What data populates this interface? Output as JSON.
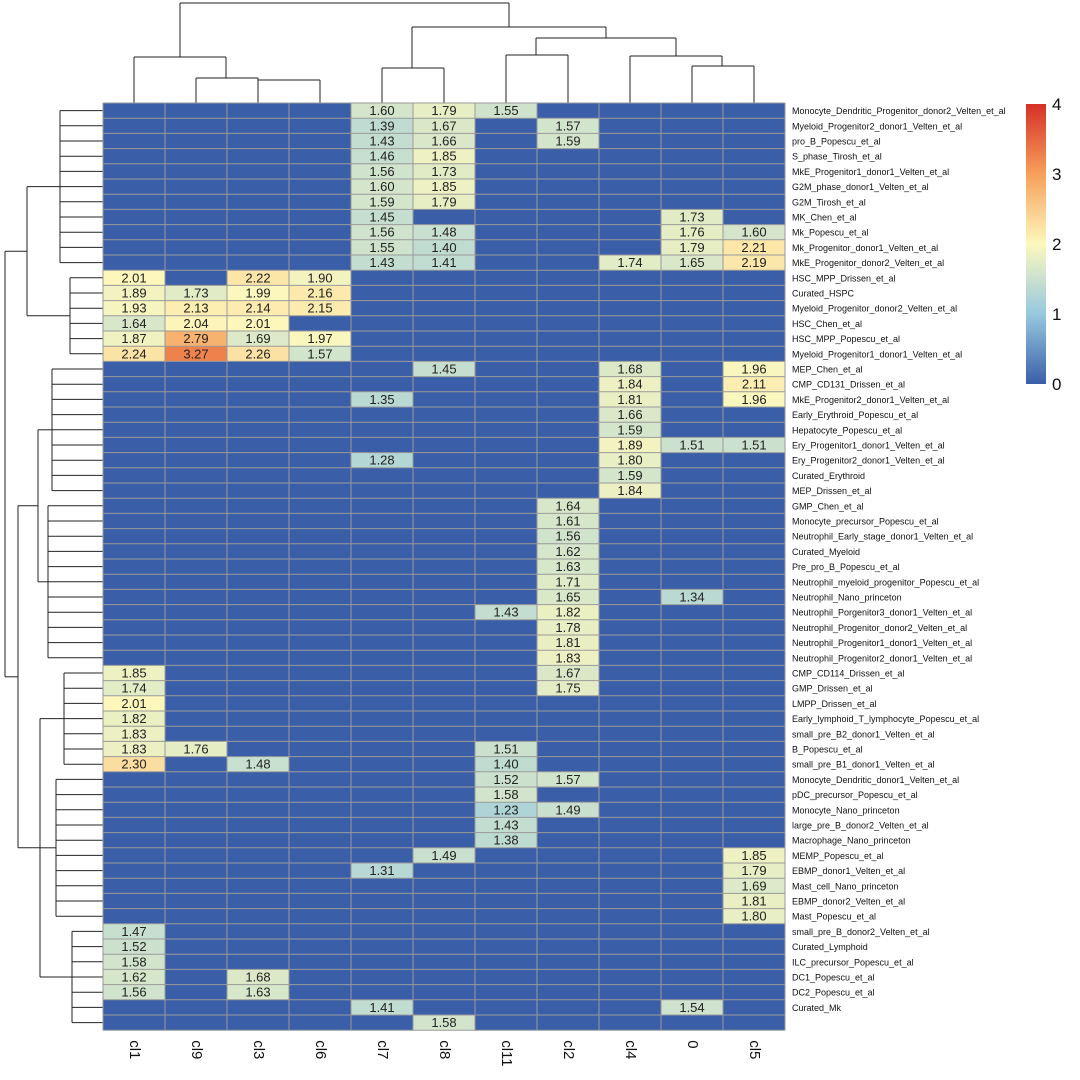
{
  "chart_data": {
    "type": "heatmap",
    "title": "",
    "columns": [
      "cl1",
      "cl9",
      "cl3",
      "cl6",
      "cl7",
      "cl8",
      "cl11",
      "cl2",
      "cl4",
      "0",
      "cl5"
    ],
    "rows": [
      "Monocyte_Dendritic_Progenitor_donor2_Velten_et_al",
      "Myeloid_Progenitor2_donor1_Velten_et_al",
      "pro_B_Popescu_et_al",
      "S_phase_Tirosh_et_al",
      "MkE_Progenitor1_donor1_Velten_et_al",
      "G2M_phase_donor1_Velten_et_al",
      "G2M_Tirosh_et_al",
      "MK_Chen_et_al",
      "Mk_Popescu_et_al",
      "Mk_Progenitor_donor1_Velten_et_al",
      "MkE_Progenitor_donor2_Velten_et_al",
      "HSC_MPP_Drissen_et_al",
      "Curated_HSPC",
      "Myeloid_Progenitor_donor2_Velten_et_al",
      "HSC_Chen_et_al",
      "HSC_MPP_Popescu_et_al",
      "Myeloid_Progenitor1_donor1_Velten_et_al",
      "MEP_Chen_et_al",
      "CMP_CD131_Drissen_et_al",
      "MkE_Progenitor2_donor1_Velten_et_al",
      "Early_Erythroid_Popescu_et_al",
      "Hepatocyte_Popescu_et_al",
      "Ery_Progenitor1_donor1_Velten_et_al",
      "Ery_Progenitor2_donor1_Velten_et_al",
      "Curated_Erythroid",
      "MEP_Drissen_et_al",
      "GMP_Chen_et_al",
      "Monocyte_precursor_Popescu_et_al",
      "Neutrophil_Early_stage_donor1_Velten_et_al",
      "Curated_Myeloid",
      "Pre_pro_B_Popescu_et_al",
      "Neutrophil_myeloid_progenitor_Popescu_et_al",
      "Neutrophil_Nano_princeton",
      "Neutrophil_Porgenitor3_donor1_Velten_et_al",
      "Neutrophil_Progenitor_donor2_Velten_et_al",
      "Neutrophil_Progenitor1_donor1_Velten_et_al",
      "Neutrophil_Progenitor2_donor1_Velten_et_al",
      "CMP_CD114_Drissen_et_al",
      "GMP_Drissen_et_al",
      "LMPP_Drissen_et_al",
      "Early_lymphoid_T_lymphocyte_Popescu_et_al",
      "small_pre_B2_donor1_Velten_et_al",
      "B_Popescu_et_al",
      "small_pre_B1_donor1_Velten_et_al",
      "Monocyte_Dendritic_donor1_Velten_et_al",
      "pDC_precursor_Popescu_et_al",
      "Monocyte_Nano_princeton",
      "large_pre_B_donor2_Velten_et_al",
      "Macrophage_Nano_princeton",
      "MEMP_Popescu_et_al",
      "EBMP_donor1_Velten_et_al",
      "Mast_cell_Nano_princeton",
      "EBMP_donor2_Velten_et_al",
      "Mast_Popescu_et_al",
      "small_pre_B_donor2_Velten_et_al",
      "Curated_Lymphoid",
      "ILC_precursor_Popescu_et_al",
      "DC1_Popescu_et_al",
      "DC2_Popescu_et_al",
      "Curated_Mk",
      ""
    ],
    "cells": [
      {
        "row": 0,
        "col": 4,
        "value": "1.60"
      },
      {
        "row": 0,
        "col": 5,
        "value": "1.79"
      },
      {
        "row": 0,
        "col": 6,
        "value": "1.55"
      },
      {
        "row": 1,
        "col": 4,
        "value": "1.39"
      },
      {
        "row": 1,
        "col": 5,
        "value": "1.67"
      },
      {
        "row": 1,
        "col": 7,
        "value": "1.57"
      },
      {
        "row": 2,
        "col": 4,
        "value": "1.43"
      },
      {
        "row": 2,
        "col": 5,
        "value": "1.66"
      },
      {
        "row": 2,
        "col": 7,
        "value": "1.59"
      },
      {
        "row": 3,
        "col": 4,
        "value": "1.46"
      },
      {
        "row": 3,
        "col": 5,
        "value": "1.85"
      },
      {
        "row": 4,
        "col": 4,
        "value": "1.56"
      },
      {
        "row": 4,
        "col": 5,
        "value": "1.73"
      },
      {
        "row": 5,
        "col": 4,
        "value": "1.60"
      },
      {
        "row": 5,
        "col": 5,
        "value": "1.85"
      },
      {
        "row": 6,
        "col": 4,
        "value": "1.59"
      },
      {
        "row": 6,
        "col": 5,
        "value": "1.79"
      },
      {
        "row": 7,
        "col": 4,
        "value": "1.45"
      },
      {
        "row": 7,
        "col": 9,
        "value": "1.73"
      },
      {
        "row": 8,
        "col": 4,
        "value": "1.56"
      },
      {
        "row": 8,
        "col": 5,
        "value": "1.48"
      },
      {
        "row": 8,
        "col": 9,
        "value": "1.76"
      },
      {
        "row": 8,
        "col": 10,
        "value": "1.60"
      },
      {
        "row": 9,
        "col": 4,
        "value": "1.55"
      },
      {
        "row": 9,
        "col": 5,
        "value": "1.40"
      },
      {
        "row": 9,
        "col": 9,
        "value": "1.79"
      },
      {
        "row": 9,
        "col": 10,
        "value": "2.21"
      },
      {
        "row": 10,
        "col": 4,
        "value": "1.43"
      },
      {
        "row": 10,
        "col": 5,
        "value": "1.41"
      },
      {
        "row": 10,
        "col": 8,
        "value": "1.74"
      },
      {
        "row": 10,
        "col": 9,
        "value": "1.65"
      },
      {
        "row": 10,
        "col": 10,
        "value": "2.19"
      },
      {
        "row": 11,
        "col": 0,
        "value": "2.01"
      },
      {
        "row": 11,
        "col": 2,
        "value": "2.22"
      },
      {
        "row": 11,
        "col": 3,
        "value": "1.90"
      },
      {
        "row": 12,
        "col": 0,
        "value": "1.89"
      },
      {
        "row": 12,
        "col": 1,
        "value": "1.73"
      },
      {
        "row": 12,
        "col": 2,
        "value": "1.99"
      },
      {
        "row": 12,
        "col": 3,
        "value": "2.16"
      },
      {
        "row": 13,
        "col": 0,
        "value": "1.93"
      },
      {
        "row": 13,
        "col": 1,
        "value": "2.13"
      },
      {
        "row": 13,
        "col": 2,
        "value": "2.14"
      },
      {
        "row": 13,
        "col": 3,
        "value": "2.15"
      },
      {
        "row": 14,
        "col": 0,
        "value": "1.64"
      },
      {
        "row": 14,
        "col": 1,
        "value": "2.04"
      },
      {
        "row": 14,
        "col": 2,
        "value": "2.01"
      },
      {
        "row": 15,
        "col": 0,
        "value": "1.87"
      },
      {
        "row": 15,
        "col": 1,
        "value": "2.79"
      },
      {
        "row": 15,
        "col": 2,
        "value": "1.69"
      },
      {
        "row": 15,
        "col": 3,
        "value": "1.97"
      },
      {
        "row": 16,
        "col": 0,
        "value": "2.24"
      },
      {
        "row": 16,
        "col": 1,
        "value": "3.27"
      },
      {
        "row": 16,
        "col": 2,
        "value": "2.26"
      },
      {
        "row": 16,
        "col": 3,
        "value": "1.57"
      },
      {
        "row": 17,
        "col": 5,
        "value": "1.45"
      },
      {
        "row": 17,
        "col": 8,
        "value": "1.68"
      },
      {
        "row": 17,
        "col": 10,
        "value": "1.96"
      },
      {
        "row": 18,
        "col": 8,
        "value": "1.84"
      },
      {
        "row": 18,
        "col": 10,
        "value": "2.11"
      },
      {
        "row": 19,
        "col": 4,
        "value": "1.35"
      },
      {
        "row": 19,
        "col": 8,
        "value": "1.81"
      },
      {
        "row": 19,
        "col": 10,
        "value": "1.96"
      },
      {
        "row": 20,
        "col": 8,
        "value": "1.66"
      },
      {
        "row": 21,
        "col": 8,
        "value": "1.59"
      },
      {
        "row": 22,
        "col": 8,
        "value": "1.89"
      },
      {
        "row": 22,
        "col": 9,
        "value": "1.51"
      },
      {
        "row": 22,
        "col": 10,
        "value": "1.51"
      },
      {
        "row": 23,
        "col": 4,
        "value": "1.28"
      },
      {
        "row": 23,
        "col": 8,
        "value": "1.80"
      },
      {
        "row": 24,
        "col": 8,
        "value": "1.59"
      },
      {
        "row": 25,
        "col": 8,
        "value": "1.84"
      },
      {
        "row": 26,
        "col": 7,
        "value": "1.64"
      },
      {
        "row": 27,
        "col": 7,
        "value": "1.61"
      },
      {
        "row": 28,
        "col": 7,
        "value": "1.56"
      },
      {
        "row": 29,
        "col": 7,
        "value": "1.62"
      },
      {
        "row": 30,
        "col": 7,
        "value": "1.63"
      },
      {
        "row": 31,
        "col": 7,
        "value": "1.71"
      },
      {
        "row": 32,
        "col": 7,
        "value": "1.65"
      },
      {
        "row": 32,
        "col": 9,
        "value": "1.34"
      },
      {
        "row": 33,
        "col": 6,
        "value": "1.43"
      },
      {
        "row": 33,
        "col": 7,
        "value": "1.82"
      },
      {
        "row": 34,
        "col": 7,
        "value": "1.78"
      },
      {
        "row": 35,
        "col": 7,
        "value": "1.81"
      },
      {
        "row": 36,
        "col": 7,
        "value": "1.83"
      },
      {
        "row": 37,
        "col": 0,
        "value": "1.85"
      },
      {
        "row": 37,
        "col": 7,
        "value": "1.67"
      },
      {
        "row": 38,
        "col": 0,
        "value": "1.74"
      },
      {
        "row": 38,
        "col": 7,
        "value": "1.75"
      },
      {
        "row": 39,
        "col": 0,
        "value": "2.01"
      },
      {
        "row": 40,
        "col": 0,
        "value": "1.82"
      },
      {
        "row": 41,
        "col": 0,
        "value": "1.83"
      },
      {
        "row": 42,
        "col": 0,
        "value": "1.83"
      },
      {
        "row": 42,
        "col": 1,
        "value": "1.76"
      },
      {
        "row": 42,
        "col": 6,
        "value": "1.51"
      },
      {
        "row": 43,
        "col": 0,
        "value": "2.30"
      },
      {
        "row": 43,
        "col": 2,
        "value": "1.48"
      },
      {
        "row": 43,
        "col": 6,
        "value": "1.40"
      },
      {
        "row": 44,
        "col": 6,
        "value": "1.52"
      },
      {
        "row": 44,
        "col": 7,
        "value": "1.57"
      },
      {
        "row": 45,
        "col": 6,
        "value": "1.58"
      },
      {
        "row": 46,
        "col": 6,
        "value": "1.23"
      },
      {
        "row": 46,
        "col": 7,
        "value": "1.49"
      },
      {
        "row": 47,
        "col": 6,
        "value": "1.43"
      },
      {
        "row": 48,
        "col": 6,
        "value": "1.38"
      },
      {
        "row": 49,
        "col": 5,
        "value": "1.49"
      },
      {
        "row": 49,
        "col": 10,
        "value": "1.85"
      },
      {
        "row": 50,
        "col": 4,
        "value": "1.31"
      },
      {
        "row": 50,
        "col": 10,
        "value": "1.79"
      },
      {
        "row": 51,
        "col": 10,
        "value": "1.69"
      },
      {
        "row": 52,
        "col": 10,
        "value": "1.81"
      },
      {
        "row": 53,
        "col": 10,
        "value": "1.80"
      },
      {
        "row": 54,
        "col": 0,
        "value": "1.47"
      },
      {
        "row": 55,
        "col": 0,
        "value": "1.52"
      },
      {
        "row": 56,
        "col": 0,
        "value": "1.58"
      },
      {
        "row": 57,
        "col": 0,
        "value": "1.62"
      },
      {
        "row": 57,
        "col": 2,
        "value": "1.68"
      },
      {
        "row": 58,
        "col": 0,
        "value": "1.56"
      },
      {
        "row": 58,
        "col": 2,
        "value": "1.63"
      },
      {
        "row": 59,
        "col": 4,
        "value": "1.41"
      },
      {
        "row": 59,
        "col": 9,
        "value": "1.54"
      },
      {
        "row": 60,
        "col": 5,
        "value": "1.58"
      }
    ],
    "color_scale": {
      "min": 0,
      "max": 4,
      "ticks": [
        "0",
        "1",
        "2",
        "3",
        "4"
      ],
      "stops": [
        "#3a5fa8",
        "#97c9df",
        "#fdf8bd",
        "#f6a05a",
        "#d73027"
      ]
    },
    "default_fill": "#3a5fa8",
    "grid_color": "#9a9a9a",
    "row_dendrogram": true,
    "col_dendrogram": true
  }
}
